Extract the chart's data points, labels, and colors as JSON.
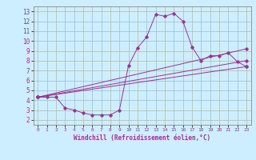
{
  "title": "",
  "xlabel": "Windchill (Refroidissement éolien,°C)",
  "bg_color": "#cceeff",
  "line_color": "#993399",
  "grid_color": "#aabbaa",
  "xlim": [
    -0.5,
    23.5
  ],
  "ylim": [
    1.5,
    13.5
  ],
  "xticks": [
    0,
    1,
    2,
    3,
    4,
    5,
    6,
    7,
    8,
    9,
    10,
    11,
    12,
    13,
    14,
    15,
    16,
    17,
    18,
    19,
    20,
    21,
    22,
    23
  ],
  "yticks": [
    2,
    3,
    4,
    5,
    6,
    7,
    8,
    9,
    10,
    11,
    12,
    13
  ],
  "series": [
    {
      "x": [
        0,
        1,
        2,
        3,
        4,
        5,
        6,
        7,
        8,
        9,
        10,
        11,
        12,
        13,
        14,
        15,
        16,
        17,
        18,
        19,
        20,
        21,
        22,
        23
      ],
      "y": [
        4.3,
        4.3,
        4.3,
        3.2,
        3.0,
        2.7,
        2.5,
        2.5,
        2.5,
        3.0,
        7.5,
        9.3,
        10.4,
        12.7,
        12.5,
        12.8,
        12.0,
        9.4,
        8.0,
        8.5,
        8.5,
        8.8,
        7.9,
        7.4
      ]
    },
    {
      "x": [
        0,
        23
      ],
      "y": [
        4.3,
        9.2
      ]
    },
    {
      "x": [
        0,
        23
      ],
      "y": [
        4.3,
        8.0
      ]
    },
    {
      "x": [
        0,
        23
      ],
      "y": [
        4.3,
        7.4
      ]
    }
  ]
}
